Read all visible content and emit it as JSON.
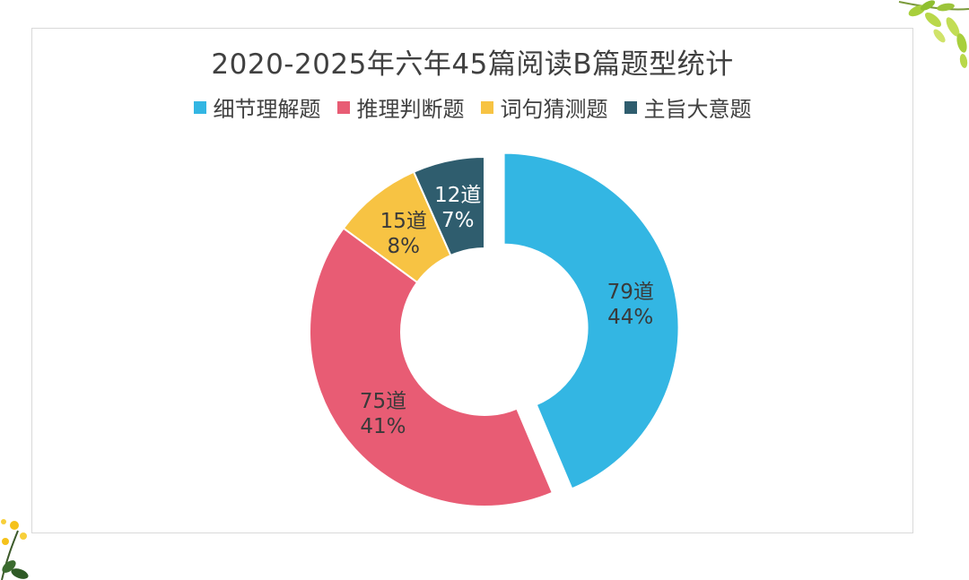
{
  "chart_data": {
    "type": "pie",
    "title": "2020-2025年六年45篇阅读B篇题型统计",
    "categories": [
      "细节理解题",
      "推理判断题",
      "词句猜测题",
      "主旨大意题"
    ],
    "values": [
      79,
      75,
      15,
      12
    ],
    "count_labels": [
      "79道",
      "75道",
      "15道",
      "12道"
    ],
    "percent_labels": [
      "44%",
      "41%",
      "8%",
      "7%"
    ],
    "colors": [
      "#33b6e3",
      "#e85c74",
      "#f7c343",
      "#2f5d6e"
    ],
    "label_colors": [
      "#3a3a3a",
      "#3a3a3a",
      "#3a3a3a",
      "#ffffff"
    ],
    "legend_position": "top",
    "donut": true,
    "exploded": "细节理解题"
  }
}
